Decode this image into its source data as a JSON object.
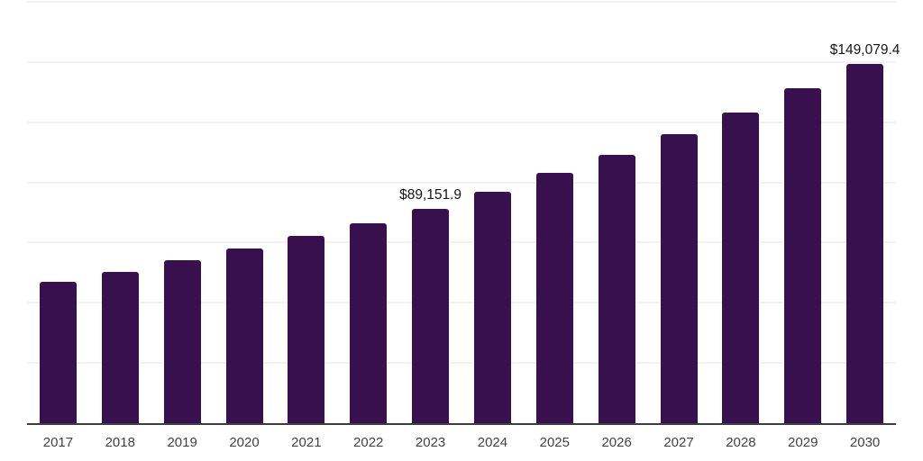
{
  "chart_data": {
    "type": "bar",
    "title": "",
    "xlabel": "",
    "ylabel": "",
    "categories": [
      "2017",
      "2018",
      "2019",
      "2020",
      "2021",
      "2022",
      "2023",
      "2024",
      "2025",
      "2026",
      "2027",
      "2028",
      "2029",
      "2030"
    ],
    "values": [
      58700,
      62700,
      67600,
      72400,
      77700,
      83100,
      89151.9,
      96100,
      103800,
      111400,
      119900,
      128900,
      139000,
      149079.4
    ],
    "data_labels": [
      "",
      "",
      "",
      "",
      "",
      "",
      "$89,151.9",
      "",
      "",
      "",
      "",
      "",
      "",
      "$149,079.4"
    ],
    "ylim": [
      0,
      175000
    ],
    "grid_step": 25000,
    "grid": "horizontal",
    "legend": "none",
    "colors": {
      "bar": "#37104d",
      "gridline": "#f2f2f5",
      "axis_line": "#3d3d3d",
      "tick_label": "#424242",
      "value_label": "#161616",
      "background": "#ffffff"
    }
  }
}
